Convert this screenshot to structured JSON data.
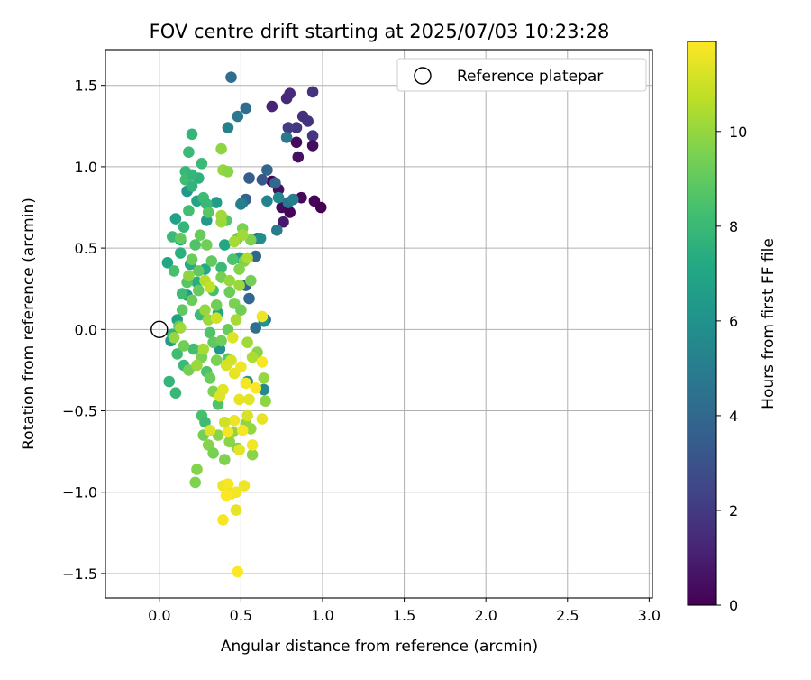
{
  "chart_data": {
    "type": "scatter",
    "title": "FOV centre drift starting at 2025/07/03 10:23:28",
    "xlabel": "Angular distance from reference (arcmin)",
    "ylabel": "Rotation from reference (arcmin)",
    "xlim": [
      -0.33,
      3.02
    ],
    "ylim": [
      -1.65,
      1.72
    ],
    "xticks": [
      0.0,
      0.5,
      1.0,
      1.5,
      2.0,
      2.5,
      3.0
    ],
    "xtick_labels": [
      "0.0",
      "0.5",
      "1.0",
      "1.5",
      "2.0",
      "2.5",
      "3.0"
    ],
    "yticks": [
      -1.5,
      -1.0,
      -0.5,
      0.0,
      0.5,
      1.0,
      1.5
    ],
    "ytick_labels": [
      "−1.5",
      "−1.0",
      "−0.5",
      "0.0",
      "0.5",
      "1.0",
      "1.5"
    ],
    "grid": true,
    "legend": {
      "placement": "top-right",
      "entries": [
        "Reference platepar"
      ]
    },
    "reference_point": {
      "x": 0.0,
      "y": 0.0
    },
    "colorbar": {
      "label": "Hours from first FF file",
      "colormap": "viridis",
      "min": 0,
      "max": 11.9,
      "ticks": [
        0,
        2,
        4,
        6,
        8,
        10
      ],
      "tick_labels": [
        "0",
        "2",
        "4",
        "6",
        "8",
        "10"
      ]
    },
    "series": [
      {
        "points": [
          [
            0.69,
            0.91,
            0.2
          ],
          [
            0.75,
            0.75,
            0.3
          ],
          [
            0.8,
            0.72,
            0.1
          ],
          [
            0.87,
            0.81,
            0.2
          ],
          [
            0.95,
            0.79,
            0.1
          ],
          [
            0.99,
            0.75,
            0.0
          ],
          [
            0.84,
            1.15,
            0.3
          ],
          [
            0.85,
            1.06,
            0.5
          ],
          [
            0.73,
            0.86,
            0.5
          ],
          [
            0.76,
            0.66,
            0.8
          ],
          [
            0.69,
            1.37,
            1.2
          ],
          [
            0.78,
            1.42,
            1.3
          ],
          [
            0.8,
            1.45,
            1.4
          ],
          [
            0.88,
            1.31,
            1.6
          ],
          [
            0.91,
            1.28,
            1.7
          ],
          [
            0.94,
            1.46,
            1.8
          ],
          [
            0.94,
            1.19,
            1.9
          ],
          [
            0.94,
            1.13,
            0.4
          ],
          [
            0.84,
            1.24,
            1.9
          ],
          [
            0.79,
            1.24,
            2.1
          ],
          [
            0.55,
            0.93,
            3.5
          ],
          [
            0.66,
            0.98,
            3.9
          ],
          [
            0.71,
            0.9,
            4.0
          ],
          [
            0.63,
            0.92,
            3.2
          ],
          [
            0.53,
            0.8,
            3.7
          ],
          [
            0.51,
            0.78,
            4.2
          ],
          [
            0.6,
            0.56,
            4.1
          ],
          [
            0.59,
            0.45,
            3.9
          ],
          [
            0.53,
            0.27,
            3.8
          ],
          [
            0.55,
            0.19,
            4.0
          ],
          [
            0.59,
            0.01,
            4.3
          ],
          [
            0.65,
            0.06,
            4.1
          ],
          [
            0.44,
            1.55,
            4.3
          ],
          [
            0.53,
            1.36,
            4.2
          ],
          [
            0.48,
            1.31,
            4.7
          ],
          [
            0.42,
            1.24,
            5.2
          ],
          [
            0.78,
            1.18,
            4.8
          ],
          [
            0.79,
            0.78,
            4.6
          ],
          [
            0.82,
            0.8,
            5.0
          ],
          [
            0.66,
            0.79,
            5.3
          ],
          [
            0.72,
            0.61,
            4.9
          ],
          [
            0.73,
            0.81,
            5.5
          ],
          [
            0.62,
            0.56,
            5.7
          ],
          [
            0.64,
            -0.37,
            5.6
          ],
          [
            0.64,
            0.05,
            6.0
          ],
          [
            0.5,
            0.77,
            5.1
          ],
          [
            0.29,
            0.67,
            6.5
          ],
          [
            0.35,
            0.78,
            6.6
          ],
          [
            0.17,
            0.85,
            6.3
          ],
          [
            0.1,
            0.68,
            6.8
          ],
          [
            0.13,
            0.55,
            6.9
          ],
          [
            0.05,
            0.41,
            7.0
          ],
          [
            0.17,
            0.21,
            6.2
          ],
          [
            0.11,
            0.06,
            6.7
          ],
          [
            0.07,
            -0.07,
            6.4
          ],
          [
            0.37,
            -0.12,
            6.1
          ],
          [
            0.49,
            0.44,
            6.6
          ],
          [
            0.4,
            0.52,
            7.1
          ],
          [
            0.28,
            0.37,
            7.2
          ],
          [
            0.36,
            0.1,
            7.0
          ],
          [
            0.19,
            0.4,
            7.3
          ],
          [
            0.23,
            0.29,
            7.4
          ],
          [
            0.54,
            -0.32,
            6.2
          ],
          [
            0.23,
            0.79,
            7.0
          ],
          [
            0.2,
            1.2,
            7.8
          ],
          [
            0.26,
            1.02,
            8.0
          ],
          [
            0.16,
            0.97,
            7.9
          ],
          [
            0.16,
            0.92,
            8.2
          ],
          [
            0.2,
            0.88,
            7.7
          ],
          [
            0.24,
            0.93,
            7.6
          ],
          [
            0.27,
            0.81,
            8.1
          ],
          [
            0.29,
            0.77,
            7.9
          ],
          [
            0.18,
            0.73,
            8.3
          ],
          [
            0.15,
            0.63,
            7.8
          ],
          [
            0.08,
            0.57,
            8.0
          ],
          [
            0.13,
            0.47,
            7.5
          ],
          [
            0.09,
            0.36,
            8.4
          ],
          [
            0.14,
            0.22,
            8.1
          ],
          [
            0.08,
            -0.03,
            7.7
          ],
          [
            0.11,
            -0.15,
            8.2
          ],
          [
            0.06,
            -0.32,
            7.8
          ],
          [
            0.1,
            -0.39,
            7.9
          ],
          [
            0.15,
            -0.22,
            8.0
          ],
          [
            0.21,
            -0.12,
            8.3
          ],
          [
            0.29,
            -0.26,
            8.5
          ],
          [
            0.26,
            -0.53,
            8.4
          ],
          [
            0.28,
            -0.57,
            8.2
          ],
          [
            0.36,
            -0.46,
            8.6
          ],
          [
            0.41,
            0.67,
            8.7
          ],
          [
            0.45,
            0.43,
            8.5
          ],
          [
            0.3,
            0.72,
            8.8
          ],
          [
            0.22,
            0.52,
            8.6
          ],
          [
            0.17,
            0.29,
            8.8
          ],
          [
            0.14,
            0.12,
            8.9
          ],
          [
            0.2,
            0.95,
            7.8
          ],
          [
            0.38,
            0.38,
            8.0
          ],
          [
            0.33,
            0.24,
            8.3
          ],
          [
            0.25,
            0.09,
            8.1
          ],
          [
            0.31,
            -0.02,
            8.6
          ],
          [
            0.33,
            -0.08,
            8.9
          ],
          [
            0.42,
            -0.18,
            8.7
          ],
          [
            0.18,
            1.09,
            8.0
          ],
          [
            0.13,
            0.56,
            9.0
          ],
          [
            0.2,
            0.43,
            9.2
          ],
          [
            0.25,
            0.58,
            9.1
          ],
          [
            0.29,
            0.52,
            9.3
          ],
          [
            0.32,
            0.42,
            9.0
          ],
          [
            0.38,
            0.32,
            9.4
          ],
          [
            0.43,
            0.23,
            9.2
          ],
          [
            0.46,
            0.16,
            9.5
          ],
          [
            0.5,
            0.12,
            9.3
          ],
          [
            0.52,
            0.42,
            9.6
          ],
          [
            0.56,
            0.3,
            9.4
          ],
          [
            0.48,
            0.56,
            9.2
          ],
          [
            0.51,
            0.62,
            9.5
          ],
          [
            0.56,
            0.55,
            9.6
          ],
          [
            0.49,
            0.37,
            9.7
          ],
          [
            0.42,
            0.0,
            9.1
          ],
          [
            0.38,
            -0.07,
            9.3
          ],
          [
            0.35,
            -0.19,
            9.5
          ],
          [
            0.31,
            -0.3,
            9.2
          ],
          [
            0.33,
            -0.38,
            9.6
          ],
          [
            0.27,
            -0.65,
            9.4
          ],
          [
            0.3,
            -0.71,
            9.7
          ],
          [
            0.33,
            -0.76,
            9.5
          ],
          [
            0.36,
            -0.65,
            9.8
          ],
          [
            0.4,
            -0.8,
            9.6
          ],
          [
            0.43,
            -0.69,
            9.8
          ],
          [
            0.45,
            -0.63,
            9.9
          ],
          [
            0.48,
            -0.73,
            9.7
          ],
          [
            0.53,
            -0.58,
            9.9
          ],
          [
            0.56,
            -0.61,
            10.0
          ],
          [
            0.57,
            -0.77,
            9.8
          ],
          [
            0.65,
            -0.44,
            9.9
          ],
          [
            0.64,
            -0.3,
            10.0
          ],
          [
            0.6,
            -0.14,
            9.8
          ],
          [
            0.22,
            -0.94,
            9.6
          ],
          [
            0.23,
            -0.86,
            9.7
          ],
          [
            0.24,
            0.24,
            9.1
          ],
          [
            0.2,
            0.18,
            9.2
          ],
          [
            0.12,
            0.02,
            9.0
          ],
          [
            0.15,
            -0.1,
            9.3
          ],
          [
            0.18,
            -0.25,
            9.4
          ],
          [
            0.26,
            -0.17,
            9.5
          ],
          [
            0.24,
            0.36,
            9.0
          ],
          [
            0.35,
            0.15,
            9.3
          ],
          [
            0.39,
            0.98,
            10.0
          ],
          [
            0.42,
            0.97,
            9.8
          ],
          [
            0.38,
            1.11,
            9.9
          ],
          [
            0.38,
            0.66,
            10.1
          ],
          [
            0.38,
            0.7,
            10.2
          ],
          [
            0.43,
            0.3,
            10.0
          ],
          [
            0.46,
            0.54,
            10.3
          ],
          [
            0.51,
            0.58,
            10.2
          ],
          [
            0.54,
            0.44,
            10.4
          ],
          [
            0.49,
            0.27,
            10.1
          ],
          [
            0.47,
            0.06,
            10.3
          ],
          [
            0.54,
            -0.08,
            10.2
          ],
          [
            0.57,
            -0.17,
            10.4
          ],
          [
            0.28,
            0.12,
            10.0
          ],
          [
            0.3,
            0.06,
            10.1
          ],
          [
            0.18,
            0.33,
            9.9
          ],
          [
            0.09,
            -0.05,
            10.0
          ],
          [
            0.13,
            0.01,
            10.2
          ],
          [
            0.27,
            -0.12,
            10.3
          ],
          [
            0.23,
            -0.22,
            10.1
          ],
          [
            0.28,
            0.3,
            10.6
          ],
          [
            0.31,
            0.26,
            10.8
          ],
          [
            0.35,
            0.07,
            11.0
          ],
          [
            0.41,
            -0.22,
            11.2
          ],
          [
            0.39,
            -0.37,
            11.4
          ],
          [
            0.37,
            -0.41,
            11.3
          ],
          [
            0.46,
            -0.27,
            11.5
          ],
          [
            0.5,
            -0.23,
            11.6
          ],
          [
            0.44,
            -0.19,
            11.1
          ],
          [
            0.45,
            -0.05,
            11.3
          ],
          [
            0.49,
            -0.43,
            11.5
          ],
          [
            0.53,
            -0.33,
            11.7
          ],
          [
            0.54,
            -0.53,
            11.2
          ],
          [
            0.46,
            -0.56,
            11.6
          ],
          [
            0.51,
            -0.62,
            11.8
          ],
          [
            0.49,
            -0.74,
            11.4
          ],
          [
            0.42,
            -0.63,
            11.7
          ],
          [
            0.4,
            -0.57,
            11.0
          ],
          [
            0.31,
            -0.62,
            11.3
          ],
          [
            0.39,
            -0.96,
            11.6
          ],
          [
            0.42,
            -0.95,
            11.8
          ],
          [
            0.44,
            -1.01,
            11.5
          ],
          [
            0.47,
            -1.0,
            11.7
          ],
          [
            0.41,
            -1.02,
            11.9
          ],
          [
            0.52,
            -0.96,
            11.6
          ],
          [
            0.39,
            -1.17,
            11.8
          ],
          [
            0.47,
            -1.11,
            11.5
          ],
          [
            0.48,
            -1.49,
            11.9
          ],
          [
            0.63,
            -0.2,
            11.8
          ],
          [
            0.57,
            -0.71,
            11.7
          ],
          [
            0.63,
            -0.55,
            11.5
          ],
          [
            0.63,
            0.08,
            11.6
          ],
          [
            0.55,
            -0.43,
            11.4
          ],
          [
            0.59,
            -0.36,
            11.9
          ]
        ]
      }
    ]
  }
}
